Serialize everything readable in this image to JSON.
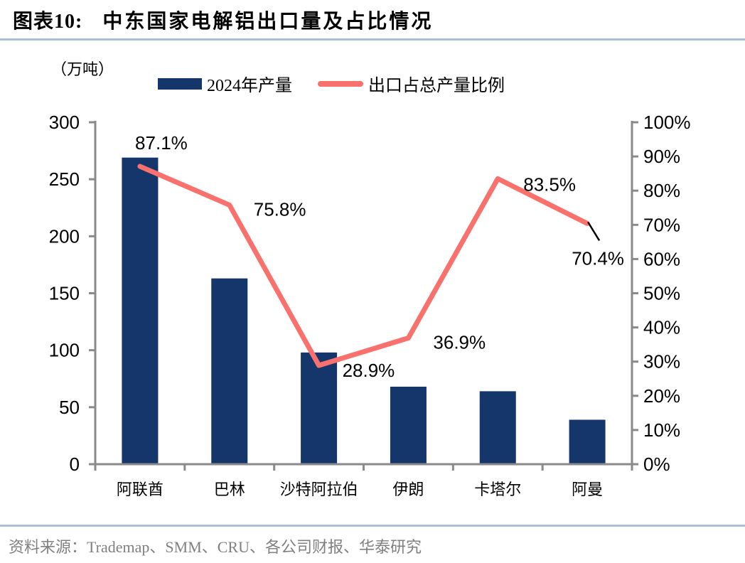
{
  "figure": {
    "title_prefix": "图表10:",
    "title": "中东国家电解铝出口量及占比情况",
    "source_line": "资料来源：Trademap、SMM、CRU、各公司财报、华泰研究"
  },
  "chart_data": {
    "type": "bar+line",
    "unit_label": "（万吨）",
    "categories": [
      "阿联酋",
      "巴林",
      "沙特阿拉伯",
      "伊朗",
      "卡塔尔",
      "阿曼"
    ],
    "series": [
      {
        "name": "2024年产量",
        "type": "bar",
        "axis": "left",
        "values": [
          269,
          163,
          98,
          68,
          64,
          39
        ],
        "color": "#14366B"
      },
      {
        "name": "出口占总产量比例",
        "type": "line",
        "axis": "right",
        "values": [
          87.1,
          75.8,
          28.9,
          36.9,
          83.5,
          70.4
        ],
        "labels": [
          "87.1%",
          "75.8%",
          "28.9%",
          "36.9%",
          "83.5%",
          "70.4%"
        ],
        "color": "#F9716C"
      }
    ],
    "left_axis": {
      "min": 0,
      "max": 300,
      "step": 50,
      "ticks": [
        "0",
        "50",
        "100",
        "150",
        "200",
        "250",
        "300"
      ]
    },
    "right_axis": {
      "min": 0,
      "max": 100,
      "step": 10,
      "ticks": [
        "0%",
        "10%",
        "20%",
        "30%",
        "40%",
        "50%",
        "60%",
        "70%",
        "80%",
        "90%",
        "100%"
      ]
    },
    "legend_position": "top",
    "grid": false
  },
  "colors": {
    "bar": "#14366B",
    "line": "#F9716C",
    "axis": "#8A8A8A",
    "rule": "#A9C0D6",
    "source_text": "#808080",
    "label_text": "#000000"
  }
}
